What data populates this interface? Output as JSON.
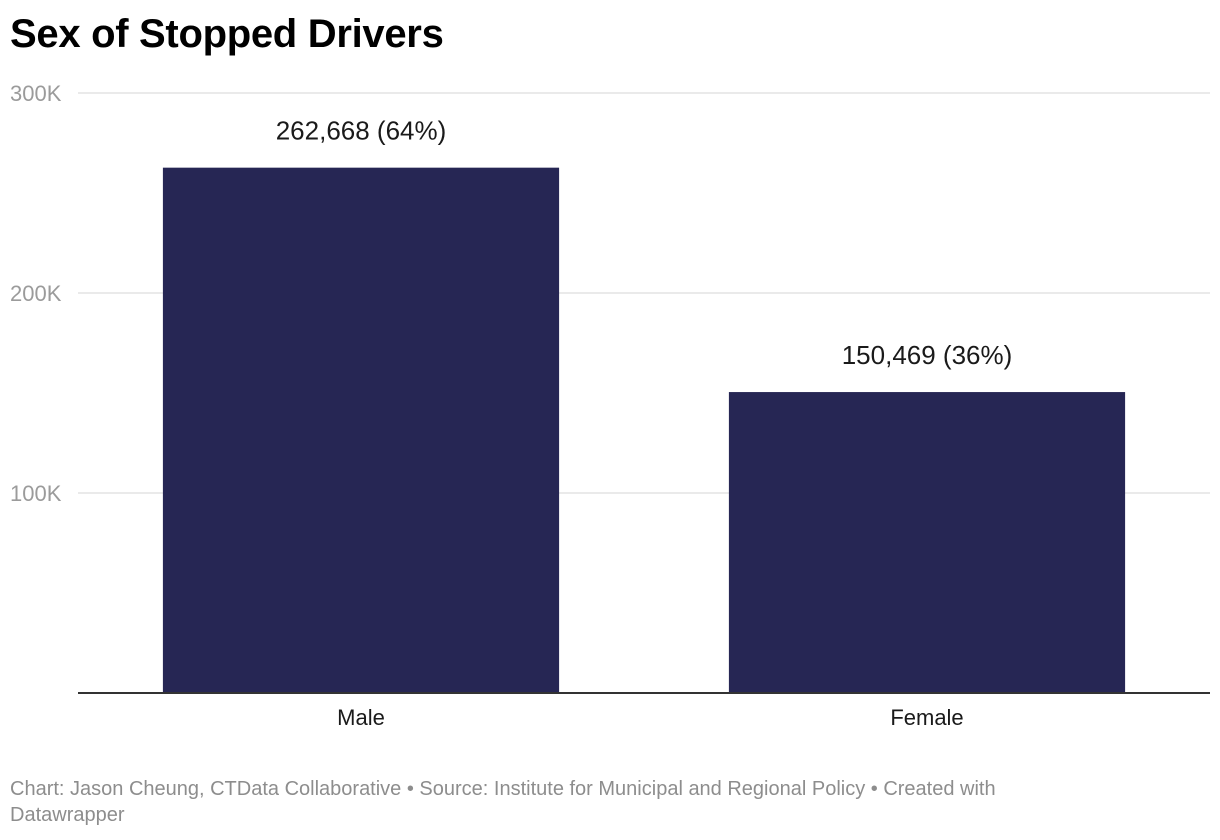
{
  "chart_data": {
    "type": "bar",
    "title": "Sex of Stopped Drivers",
    "categories": [
      "Male",
      "Female"
    ],
    "values": [
      262668,
      150469
    ],
    "data_labels": [
      "262,668 (64%)",
      "150,469 (36%)"
    ],
    "ylim": [
      0,
      300000
    ],
    "yticks": [
      100000,
      200000,
      300000
    ],
    "ytick_labels": [
      "100K",
      "200K",
      "300K"
    ],
    "grid": true,
    "bar_color": "#262654"
  },
  "footer": {
    "credit": "Chart: Jason Cheung, CTData Collaborative • Source: Institute for Municipal and Regional Policy • Created with Datawrapper"
  }
}
